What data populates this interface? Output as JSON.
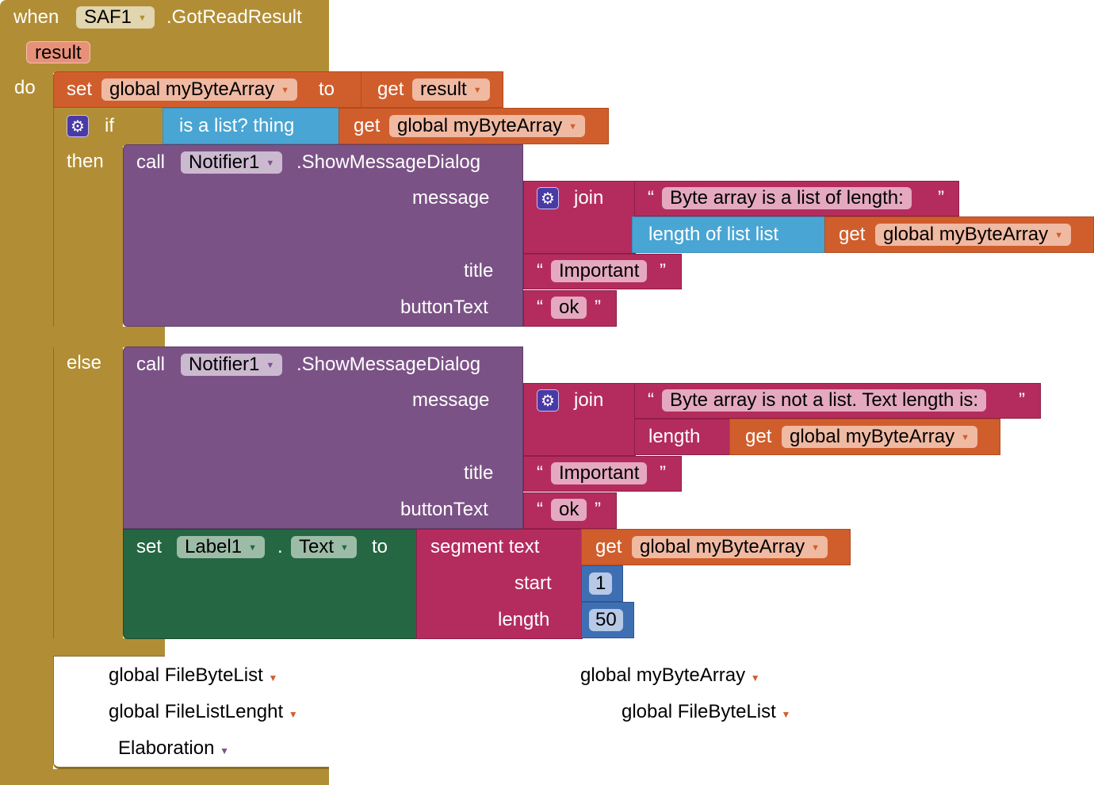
{
  "event": {
    "when": "when",
    "component": "SAF1",
    "event": ".GotReadResult",
    "param": "result",
    "do": "do"
  },
  "set1": {
    "set": "set",
    "var": "global myByteArray",
    "to": "to",
    "get": "get",
    "get_var": "result"
  },
  "if": {
    "if": "if",
    "then": "then",
    "else": "else",
    "islist": "is a list?  thing",
    "get": "get",
    "get_var": "global myByteArray"
  },
  "then_call": {
    "call": "call",
    "component": "Notifier1",
    "method": ".ShowMessageDialog",
    "message": "message",
    "join": "join",
    "text1": "Byte array is a list of length:",
    "length_of_list": "length of list  list",
    "get": "get",
    "get_var": "global myByteArray",
    "title": "title",
    "title_val": "Important",
    "buttonText": "buttonText",
    "button_val": "ok"
  },
  "else_call": {
    "call": "call",
    "component": "Notifier1",
    "method": ".ShowMessageDialog",
    "message": "message",
    "join": "join",
    "text1": "Byte array is not a list. Text length is:",
    "length": "length",
    "get": "get",
    "get_var": "global myByteArray",
    "title": "title",
    "title_val": "Important",
    "buttonText": "buttonText",
    "button_val": "ok"
  },
  "set_label": {
    "set": "set",
    "component": "Label1",
    "dot": ".",
    "prop": "Text",
    "to": "to",
    "segment": "segment  text",
    "get": "get",
    "get_var": "global myByteArray",
    "start": "start",
    "start_val": "1",
    "length": "length",
    "length_val": "50"
  },
  "quote_open": "“",
  "quote_close": "”",
  "background_labels": [
    "global FileByteList",
    "global myByteArray",
    "global FileListLenght",
    "global FileByteList",
    "Elaboration"
  ],
  "colors": {
    "event": "#b18e35",
    "variable": "#d05e2c",
    "list": "#49a5d3",
    "component": "#7b5286",
    "text": "#b42c5d",
    "set_component": "#256643",
    "math": "#3f6fb3"
  }
}
